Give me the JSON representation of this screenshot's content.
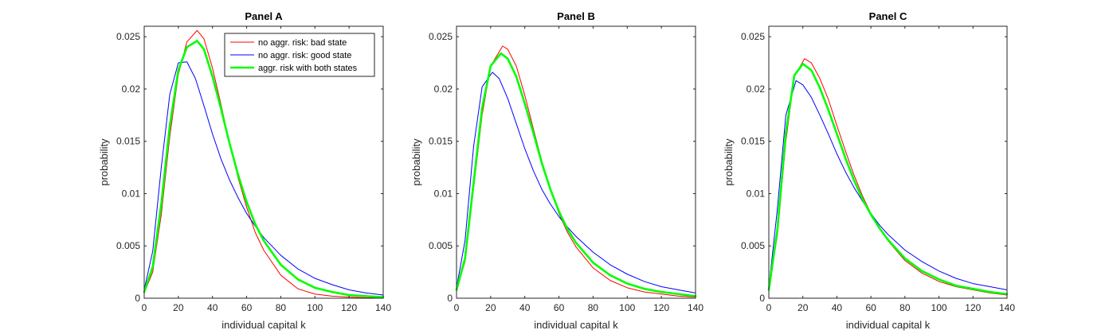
{
  "chart_data": [
    {
      "type": "line",
      "title": "Panel A",
      "xlabel": "individual capital k",
      "ylabel": "probability",
      "xlim": [
        0,
        140
      ],
      "ylim": [
        0,
        0.026
      ],
      "xticks": [
        0,
        20,
        40,
        60,
        80,
        100,
        120,
        140
      ],
      "yticks": [
        0,
        0.005,
        0.01,
        0.015,
        0.02,
        0.025
      ],
      "xtick_labels": [
        "0",
        "20",
        "40",
        "60",
        "80",
        "100",
        "120",
        "140"
      ],
      "ytick_labels": [
        "0",
        "0.005",
        "0.01",
        "0.015",
        "0.02",
        "0.025"
      ],
      "grid": false,
      "legend_position": "top-right",
      "series": [
        {
          "name": "no aggr. risk: bad state",
          "color": "#ff0000",
          "stroke": "thin",
          "x": [
            0,
            5,
            10,
            15,
            20,
            25,
            31,
            35,
            40,
            45,
            50,
            55,
            60,
            65,
            70,
            80,
            90,
            100,
            110,
            120,
            130,
            140
          ],
          "y": [
            0.0005,
            0.0025,
            0.008,
            0.0155,
            0.0214,
            0.0245,
            0.0256,
            0.0248,
            0.022,
            0.0185,
            0.0148,
            0.0115,
            0.0087,
            0.0063,
            0.0046,
            0.0022,
            0.0009,
            0.0004,
            0.0002,
            0.0001,
            5e-05,
            2e-05
          ]
        },
        {
          "name": "no aggr. risk: good state",
          "color": "#0000ff",
          "stroke": "thin",
          "x": [
            0,
            5,
            10,
            15,
            20,
            25,
            30,
            35,
            40,
            45,
            50,
            55,
            60,
            65,
            70,
            80,
            90,
            100,
            110,
            120,
            130,
            140
          ],
          "y": [
            0.0008,
            0.0045,
            0.0125,
            0.0195,
            0.0225,
            0.0226,
            0.021,
            0.0184,
            0.0157,
            0.0133,
            0.0113,
            0.0096,
            0.0081,
            0.0069,
            0.0058,
            0.0041,
            0.0028,
            0.0019,
            0.0013,
            0.0008,
            0.0005,
            0.0003
          ]
        },
        {
          "name": "aggr. risk with both states",
          "color": "#00ff00",
          "stroke": "thick",
          "x": [
            0,
            5,
            10,
            15,
            20,
            25,
            31,
            35,
            40,
            45,
            50,
            55,
            60,
            65,
            70,
            80,
            90,
            100,
            110,
            120,
            130,
            140
          ],
          "y": [
            0.0006,
            0.003,
            0.009,
            0.0165,
            0.0218,
            0.024,
            0.0246,
            0.0238,
            0.0212,
            0.0181,
            0.0148,
            0.0118,
            0.0092,
            0.0071,
            0.0055,
            0.0032,
            0.0018,
            0.001,
            0.0006,
            0.0003,
            0.0002,
            0.0001
          ]
        }
      ]
    },
    {
      "type": "line",
      "title": "Panel B",
      "xlabel": "individual capital k",
      "ylabel": "probability",
      "xlim": [
        0,
        140
      ],
      "ylim": [
        0,
        0.026
      ],
      "xticks": [
        0,
        20,
        40,
        60,
        80,
        100,
        120,
        140
      ],
      "yticks": [
        0,
        0.005,
        0.01,
        0.015,
        0.02,
        0.025
      ],
      "xtick_labels": [
        "0",
        "20",
        "40",
        "60",
        "80",
        "100",
        "120",
        "140"
      ],
      "ytick_labels": [
        "0",
        "0.005",
        "0.01",
        "0.015",
        "0.02",
        "0.025"
      ],
      "grid": false,
      "legend_position": "none",
      "series": [
        {
          "name": "no aggr. risk: bad state",
          "color": "#ff0000",
          "stroke": "thin",
          "x": [
            0,
            5,
            10,
            15,
            20,
            27,
            30,
            35,
            40,
            45,
            50,
            55,
            60,
            65,
            70,
            80,
            90,
            100,
            110,
            120,
            130,
            140
          ],
          "y": [
            0.0008,
            0.0035,
            0.0105,
            0.0175,
            0.0222,
            0.0241,
            0.0238,
            0.0222,
            0.0194,
            0.0162,
            0.0131,
            0.0104,
            0.0081,
            0.0063,
            0.0049,
            0.0029,
            0.0017,
            0.001,
            0.0006,
            0.0004,
            0.0002,
            0.0001
          ]
        },
        {
          "name": "no aggr. risk: good state",
          "color": "#0000ff",
          "stroke": "thin",
          "x": [
            0,
            5,
            10,
            15,
            21,
            25,
            30,
            35,
            40,
            45,
            50,
            55,
            60,
            65,
            70,
            80,
            90,
            100,
            110,
            120,
            130,
            140
          ],
          "y": [
            0.001,
            0.0055,
            0.0145,
            0.0202,
            0.0216,
            0.021,
            0.0191,
            0.0167,
            0.0143,
            0.0122,
            0.0104,
            0.009,
            0.0078,
            0.0068,
            0.0059,
            0.0044,
            0.0032,
            0.0023,
            0.0016,
            0.0011,
            0.0008,
            0.0005
          ]
        },
        {
          "name": "aggr. risk with both states",
          "color": "#00ff00",
          "stroke": "thick",
          "x": [
            0,
            5,
            10,
            15,
            20,
            26,
            30,
            35,
            40,
            45,
            50,
            55,
            60,
            65,
            70,
            80,
            90,
            100,
            110,
            120,
            130,
            140
          ],
          "y": [
            0.0008,
            0.0038,
            0.011,
            0.0182,
            0.0222,
            0.0234,
            0.0229,
            0.0212,
            0.0186,
            0.0158,
            0.0129,
            0.0104,
            0.0083,
            0.0066,
            0.0053,
            0.0034,
            0.0022,
            0.0014,
            0.0009,
            0.0006,
            0.0004,
            0.0002
          ]
        }
      ]
    },
    {
      "type": "line",
      "title": "Panel C",
      "xlabel": "individual capital k",
      "ylabel": "probability",
      "xlim": [
        0,
        140
      ],
      "ylim": [
        0,
        0.026
      ],
      "xticks": [
        0,
        20,
        40,
        60,
        80,
        100,
        120,
        140
      ],
      "yticks": [
        0,
        0.005,
        0.01,
        0.015,
        0.02,
        0.025
      ],
      "xtick_labels": [
        "0",
        "20",
        "40",
        "60",
        "80",
        "100",
        "120",
        "140"
      ],
      "ytick_labels": [
        "0",
        "0.005",
        "0.01",
        "0.015",
        "0.02",
        "0.025"
      ],
      "grid": false,
      "legend_position": "none",
      "series": [
        {
          "name": "no aggr. risk: bad state",
          "color": "#ff0000",
          "stroke": "thin",
          "x": [
            0,
            5,
            10,
            15,
            21,
            25,
            30,
            35,
            40,
            45,
            50,
            55,
            60,
            65,
            70,
            80,
            90,
            100,
            110,
            120,
            130,
            140
          ],
          "y": [
            0.0008,
            0.006,
            0.015,
            0.0212,
            0.0229,
            0.0225,
            0.021,
            0.019,
            0.0165,
            0.0141,
            0.0118,
            0.0098,
            0.0081,
            0.0067,
            0.0055,
            0.0036,
            0.0024,
            0.0016,
            0.0011,
            0.0008,
            0.0005,
            0.0003
          ]
        },
        {
          "name": "no aggr. risk: good state",
          "color": "#0000ff",
          "stroke": "thin",
          "x": [
            0,
            5,
            10,
            16,
            20,
            25,
            30,
            35,
            40,
            45,
            50,
            55,
            60,
            65,
            70,
            80,
            90,
            100,
            110,
            120,
            130,
            140
          ],
          "y": [
            0.001,
            0.0085,
            0.0175,
            0.0208,
            0.0204,
            0.0192,
            0.0175,
            0.0157,
            0.0138,
            0.0121,
            0.0106,
            0.0093,
            0.0081,
            0.007,
            0.0061,
            0.0046,
            0.0035,
            0.0026,
            0.0019,
            0.0014,
            0.0011,
            0.0008
          ]
        },
        {
          "name": "aggr. risk with both states",
          "color": "#00ff00",
          "stroke": "thick",
          "x": [
            0,
            5,
            10,
            15,
            20,
            25,
            30,
            35,
            40,
            45,
            50,
            55,
            60,
            65,
            70,
            80,
            90,
            100,
            110,
            120,
            130,
            140
          ],
          "y": [
            0.0008,
            0.0065,
            0.0158,
            0.0213,
            0.0224,
            0.0218,
            0.0201,
            0.018,
            0.0157,
            0.0134,
            0.0113,
            0.0095,
            0.008,
            0.0067,
            0.0056,
            0.0038,
            0.0026,
            0.0018,
            0.0012,
            0.0009,
            0.0006,
            0.0004
          ]
        }
      ]
    }
  ]
}
